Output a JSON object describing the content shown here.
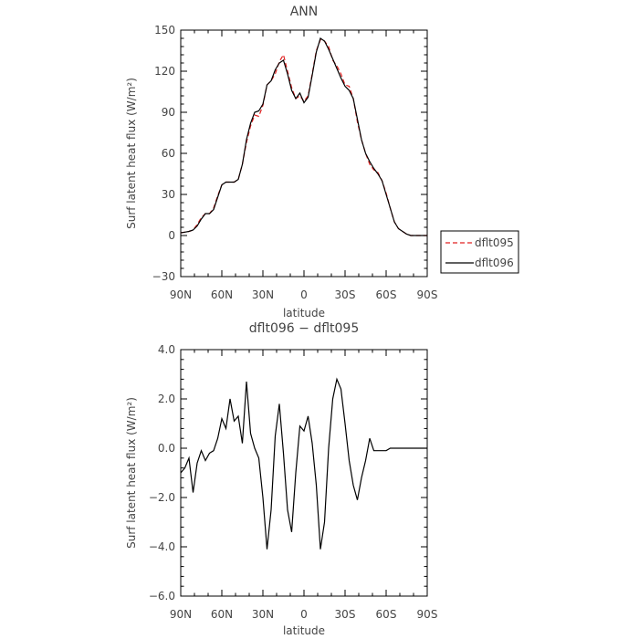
{
  "chart_data": [
    {
      "type": "line",
      "title": "ANN",
      "xlabel": "latitude",
      "ylabel": "Surf latent heat flux (W/m²)",
      "xlim": [
        90,
        -90
      ],
      "ylim": [
        -30,
        150
      ],
      "x_ticks": [
        90,
        60,
        30,
        0,
        -30,
        -60,
        -90
      ],
      "x_tick_labels": [
        "90N",
        "60N",
        "30N",
        "0",
        "30S",
        "60S",
        "90S"
      ],
      "y_ticks": [
        -30,
        0,
        30,
        60,
        90,
        120,
        150
      ],
      "y_tick_labels": [
        "−30",
        "0",
        "30",
        "60",
        "90",
        "120",
        "150"
      ],
      "legend": {
        "placement": "right",
        "entries": [
          {
            "label": "dflt095",
            "color": "#e02020",
            "style": "dashed"
          },
          {
            "label": "dflt096",
            "color": "#000000",
            "style": "solid"
          }
        ]
      },
      "x": [
        90,
        87,
        84,
        81,
        78,
        75,
        72,
        69,
        66,
        63,
        60,
        57,
        54,
        51,
        48,
        45,
        42,
        39,
        36,
        33,
        30,
        27,
        24,
        21,
        18,
        15,
        12,
        9,
        6,
        3,
        0,
        -3,
        -6,
        -9,
        -12,
        -15,
        -18,
        -21,
        -24,
        -27,
        -30,
        -33,
        -36,
        -39,
        -42,
        -45,
        -48,
        -51,
        -54,
        -57,
        -60,
        -63,
        -66,
        -69,
        -72,
        -75,
        -78,
        -81,
        -84,
        -87,
        -90
      ],
      "series": [
        {
          "name": "dflt095",
          "color": "#e02020",
          "style": "dashed",
          "values": [
            2,
            2.5,
            3,
            4,
            8,
            13,
            16,
            16,
            20,
            29,
            37,
            39,
            39,
            39,
            41,
            52,
            68,
            80,
            88,
            87,
            95,
            110,
            113,
            118,
            127,
            132,
            120,
            108,
            100,
            102,
            98,
            102,
            118,
            135,
            143,
            142,
            138,
            128,
            124,
            118,
            110,
            109,
            100,
            83,
            70,
            60,
            52,
            48,
            46,
            40,
            31,
            20,
            10,
            5,
            3,
            1,
            0,
            0,
            0,
            0,
            0
          ]
        },
        {
          "name": "dflt096",
          "color": "#000000",
          "style": "solid",
          "values": [
            2,
            2.5,
            3,
            4,
            7,
            12,
            16,
            16,
            19,
            28,
            37,
            39,
            39,
            39,
            41,
            52,
            70,
            82,
            90,
            91,
            96,
            110,
            113,
            121,
            126,
            128,
            118,
            106,
            100,
            104,
            97,
            101,
            117,
            134,
            144,
            142,
            136,
            129,
            122,
            115,
            109,
            106,
            100,
            85,
            70,
            60,
            54,
            49,
            45,
            40,
            30,
            20,
            10,
            5,
            3,
            1,
            0,
            0,
            0,
            0,
            0
          ]
        }
      ]
    },
    {
      "type": "line",
      "title": "dflt096 − dflt095",
      "xlabel": "latitude",
      "ylabel": "Surf latent heat flux (W/m²)",
      "xlim": [
        90,
        -90
      ],
      "ylim": [
        -6,
        4
      ],
      "x_ticks": [
        90,
        60,
        30,
        0,
        -30,
        -60,
        -90
      ],
      "x_tick_labels": [
        "90N",
        "60N",
        "30N",
        "0",
        "30S",
        "60S",
        "90S"
      ],
      "y_ticks": [
        -6,
        -4,
        -2,
        0,
        2,
        4
      ],
      "y_tick_labels": [
        "−6.0",
        "−4.0",
        "−2.0",
        "0.0",
        "2.0",
        "4.0"
      ],
      "x": [
        90,
        87,
        84,
        81,
        78,
        75,
        72,
        69,
        66,
        63,
        60,
        57,
        54,
        51,
        48,
        45,
        42,
        39,
        36,
        33,
        30,
        27,
        24,
        21,
        18,
        15,
        12,
        9,
        6,
        3,
        0,
        -3,
        -6,
        -9,
        -12,
        -15,
        -18,
        -21,
        -24,
        -27,
        -30,
        -33,
        -36,
        -39,
        -42,
        -45,
        -48,
        -51,
        -54,
        -57,
        -60,
        -63,
        -66,
        -69,
        -72,
        -75,
        -78,
        -81,
        -84,
        -87,
        -90
      ],
      "series": [
        {
          "color": "#000000",
          "style": "solid",
          "values": [
            -1.0,
            -0.8,
            -0.4,
            -1.8,
            -0.6,
            -0.1,
            -0.5,
            -0.2,
            -0.1,
            0.4,
            1.2,
            0.8,
            2.0,
            1.1,
            1.3,
            0.2,
            2.7,
            0.6,
            0.0,
            -0.4,
            -2.0,
            -4.1,
            -2.5,
            0.5,
            1.8,
            -0.2,
            -2.5,
            -3.4,
            -1.0,
            0.9,
            0.7,
            1.3,
            0.2,
            -1.5,
            -4.1,
            -3.0,
            0.0,
            2.0,
            2.8,
            2.4,
            1.0,
            -0.5,
            -1.5,
            -2.1,
            -1.2,
            -0.5,
            0.4,
            -0.1,
            -0.1,
            -0.1,
            -0.1,
            0.0,
            0.0,
            0.0,
            0.0,
            0.0,
            0.0,
            0.0,
            0.0,
            0.0,
            0.0
          ]
        }
      ]
    }
  ]
}
